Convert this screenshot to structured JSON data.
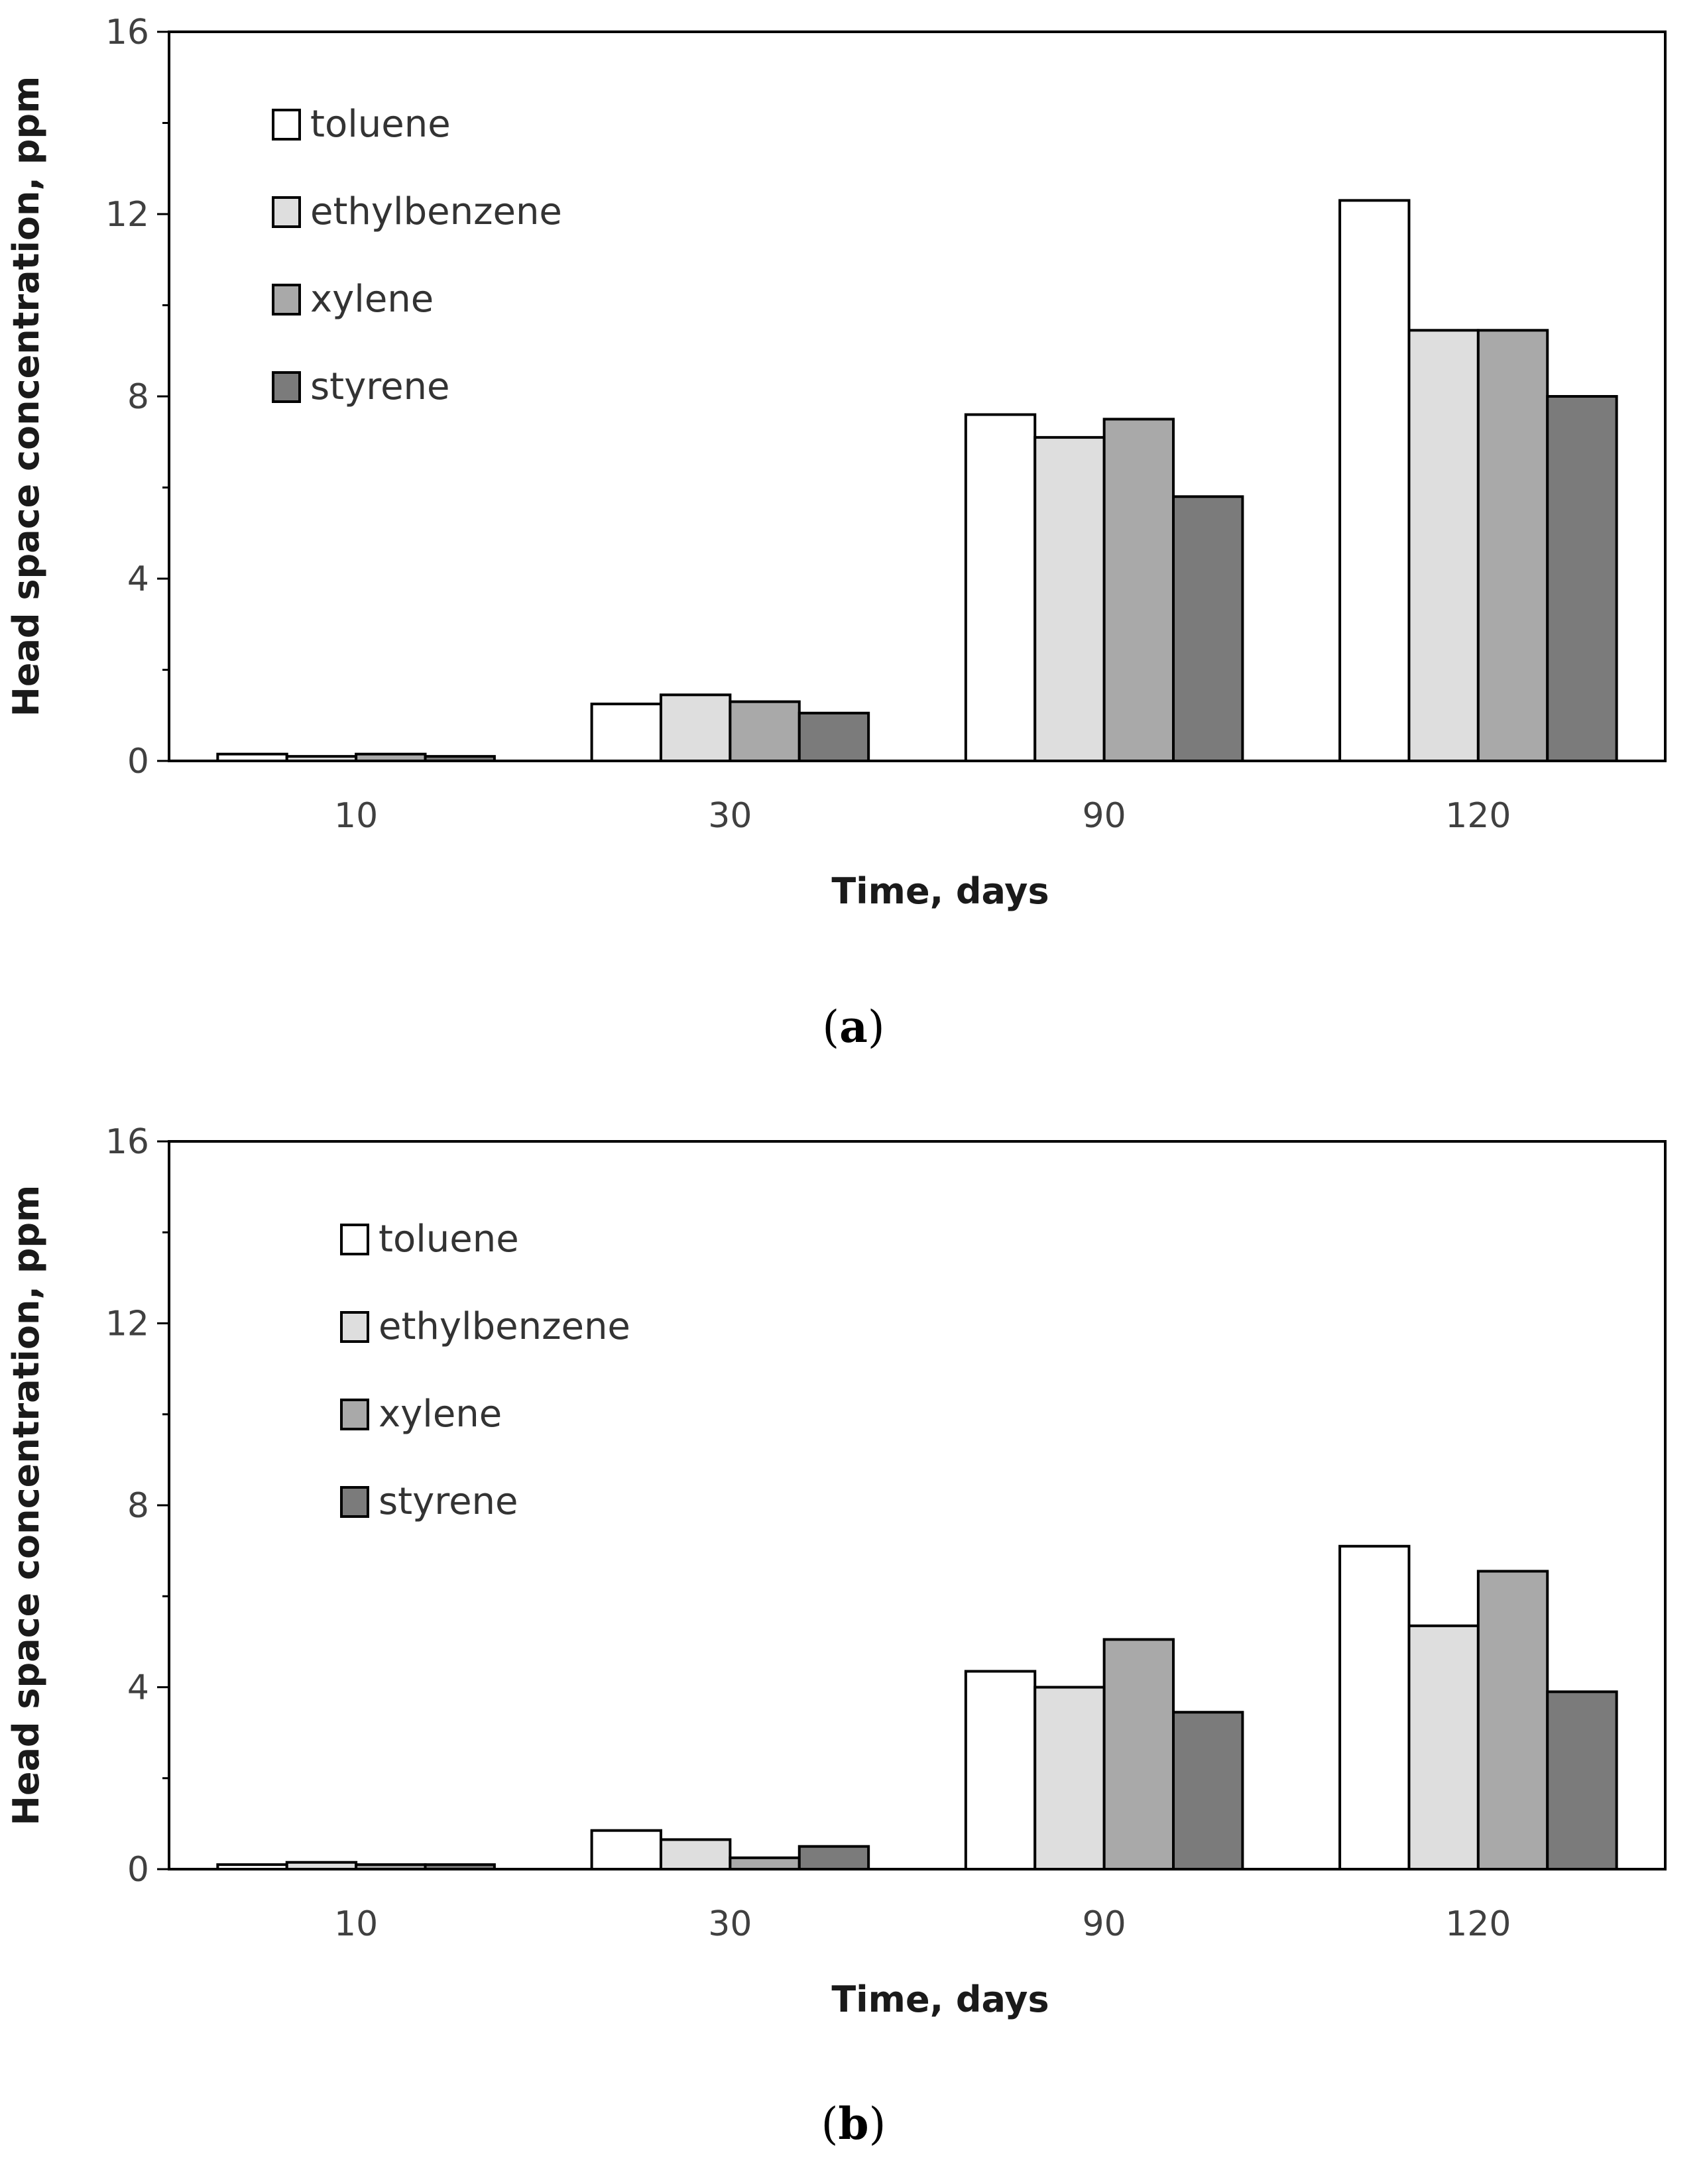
{
  "series_colors": {
    "toluene": "#ffffff",
    "ethylbenzene": "#dedede",
    "xylene": "#a9a9a9",
    "styrene": "#7b7b7b"
  },
  "chart_data": [
    {
      "type": "bar",
      "panel_label": "a",
      "title": "",
      "xlabel": "Time, days",
      "ylabel": "Head space concentration, ppm",
      "ylim": [
        0,
        16
      ],
      "yticks": [
        0,
        4,
        8,
        12,
        16
      ],
      "categories": [
        "10",
        "30",
        "90",
        "120"
      ],
      "series": [
        {
          "name": "toluene",
          "values": [
            0.15,
            1.25,
            7.6,
            12.3
          ]
        },
        {
          "name": "ethylbenzene",
          "values": [
            0.1,
            1.45,
            7.1,
            9.45
          ]
        },
        {
          "name": "xylene",
          "values": [
            0.15,
            1.3,
            7.5,
            9.45
          ]
        },
        {
          "name": "styrene",
          "values": [
            0.1,
            1.05,
            5.8,
            8.0
          ]
        }
      ],
      "legend": [
        "toluene",
        "ethylbenzene",
        "xylene",
        "styrene"
      ],
      "legend_position": "top-left",
      "grid": false
    },
    {
      "type": "bar",
      "panel_label": "b",
      "title": "",
      "xlabel": "Time, days",
      "ylabel": "Head space concentration, ppm",
      "ylim": [
        0,
        16
      ],
      "yticks": [
        0,
        4,
        8,
        12,
        16
      ],
      "categories": [
        "10",
        "30",
        "90",
        "120"
      ],
      "series": [
        {
          "name": "toluene",
          "values": [
            0.1,
            0.85,
            4.35,
            7.1
          ]
        },
        {
          "name": "ethylbenzene",
          "values": [
            0.15,
            0.65,
            4.0,
            5.35
          ]
        },
        {
          "name": "xylene",
          "values": [
            0.1,
            0.25,
            5.05,
            6.55
          ]
        },
        {
          "name": "styrene",
          "values": [
            0.1,
            0.5,
            3.45,
            3.9
          ]
        }
      ],
      "legend": [
        "toluene",
        "ethylbenzene",
        "xylene",
        "styrene"
      ],
      "legend_position": "top-left",
      "grid": false
    }
  ],
  "captions": {
    "a": {
      "open": "(",
      "label": "a",
      "close": ")"
    },
    "b": {
      "open": "(",
      "label": "b",
      "close": ")"
    }
  }
}
